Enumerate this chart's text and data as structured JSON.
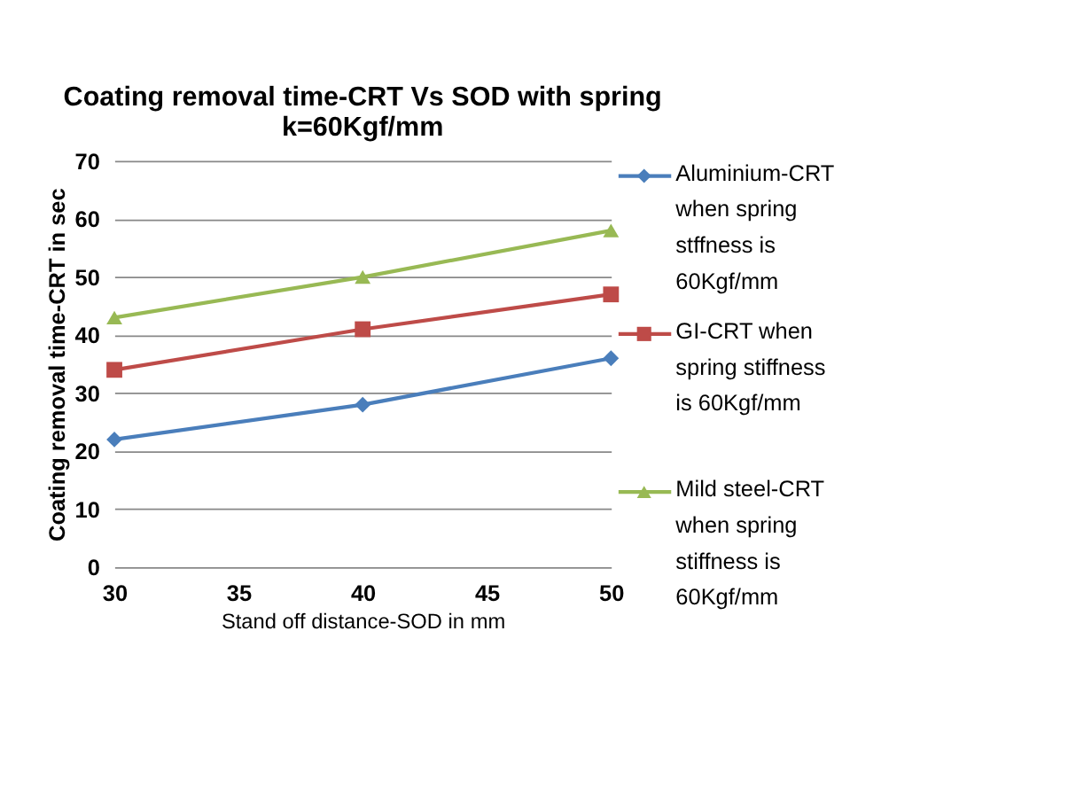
{
  "chart_data": {
    "type": "line",
    "title": "Coating removal time-CRT Vs SOD with spring k=60Kgf/mm",
    "xlabel": "Stand off distance-SOD in mm",
    "ylabel": "Coating removal time-CRT in sec",
    "x": [
      30,
      40,
      50
    ],
    "series": [
      {
        "name": "Aluminium-CRT when spring stffness is 60Kgf/mm",
        "color": "#4a7ebb",
        "marker": "diamond",
        "values": [
          22,
          28,
          36
        ]
      },
      {
        "name": "GI-CRT when spring stiffness is 60Kgf/mm",
        "color": "#be4b48",
        "marker": "square",
        "values": [
          34,
          41,
          47
        ]
      },
      {
        "name": "Mild steel-CRT when spring stiffness is 60Kgf/mm",
        "color": "#98b954",
        "marker": "triangle",
        "values": [
          43,
          50,
          58
        ]
      }
    ],
    "xlim": [
      30,
      50
    ],
    "xticks": [
      30,
      35,
      40,
      45,
      50
    ],
    "ylim": [
      0,
      70
    ],
    "yticks": [
      0,
      10,
      20,
      30,
      40,
      50,
      60,
      70
    ],
    "grid": "y",
    "legend": "right",
    "line_style": "solid"
  }
}
